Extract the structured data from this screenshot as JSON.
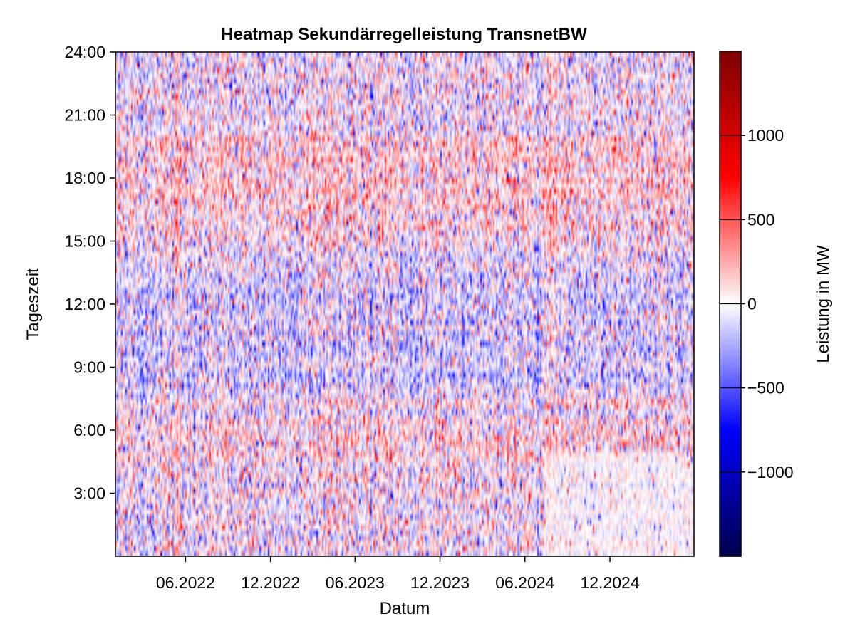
{
  "chart_data": {
    "type": "heatmap",
    "title": "Heatmap Sekundärregelleistung TransnetBW",
    "xlabel": "Datum",
    "ylabel": "Tageszeit",
    "x_range": [
      "2022-01-01",
      "2025-05-31"
    ],
    "x_ticks": [
      {
        "date": "2022-06-01",
        "label": "06.2022"
      },
      {
        "date": "2022-12-01",
        "label": "12.2022"
      },
      {
        "date": "2023-06-01",
        "label": "06.2023"
      },
      {
        "date": "2023-12-01",
        "label": "12.2023"
      },
      {
        "date": "2024-06-01",
        "label": "06.2024"
      },
      {
        "date": "2024-12-01",
        "label": "12.2024"
      }
    ],
    "y_range_hours": [
      0,
      24
    ],
    "y_ticks": [
      {
        "hour": 3,
        "label": "3:00"
      },
      {
        "hour": 6,
        "label": "6:00"
      },
      {
        "hour": 9,
        "label": "9:00"
      },
      {
        "hour": 12,
        "label": "12:00"
      },
      {
        "hour": 15,
        "label": "15:00"
      },
      {
        "hour": 18,
        "label": "18:00"
      },
      {
        "hour": 21,
        "label": "21:00"
      },
      {
        "hour": 24,
        "label": "24:00"
      }
    ],
    "colorbar": {
      "label": "Leistung in MW",
      "colormap": "seismic",
      "range": [
        -1500,
        1500
      ],
      "ticks": [
        {
          "value": -1000,
          "label": "−1000"
        },
        {
          "value": -500,
          "label": "−500"
        },
        {
          "value": 0,
          "label": "0"
        },
        {
          "value": 500,
          "label": "500"
        },
        {
          "value": 1000,
          "label": "1000"
        }
      ],
      "minor_ticks": [
        -1500,
        -1000,
        -500,
        0,
        500,
        1000,
        1500
      ]
    },
    "grid": false
  }
}
